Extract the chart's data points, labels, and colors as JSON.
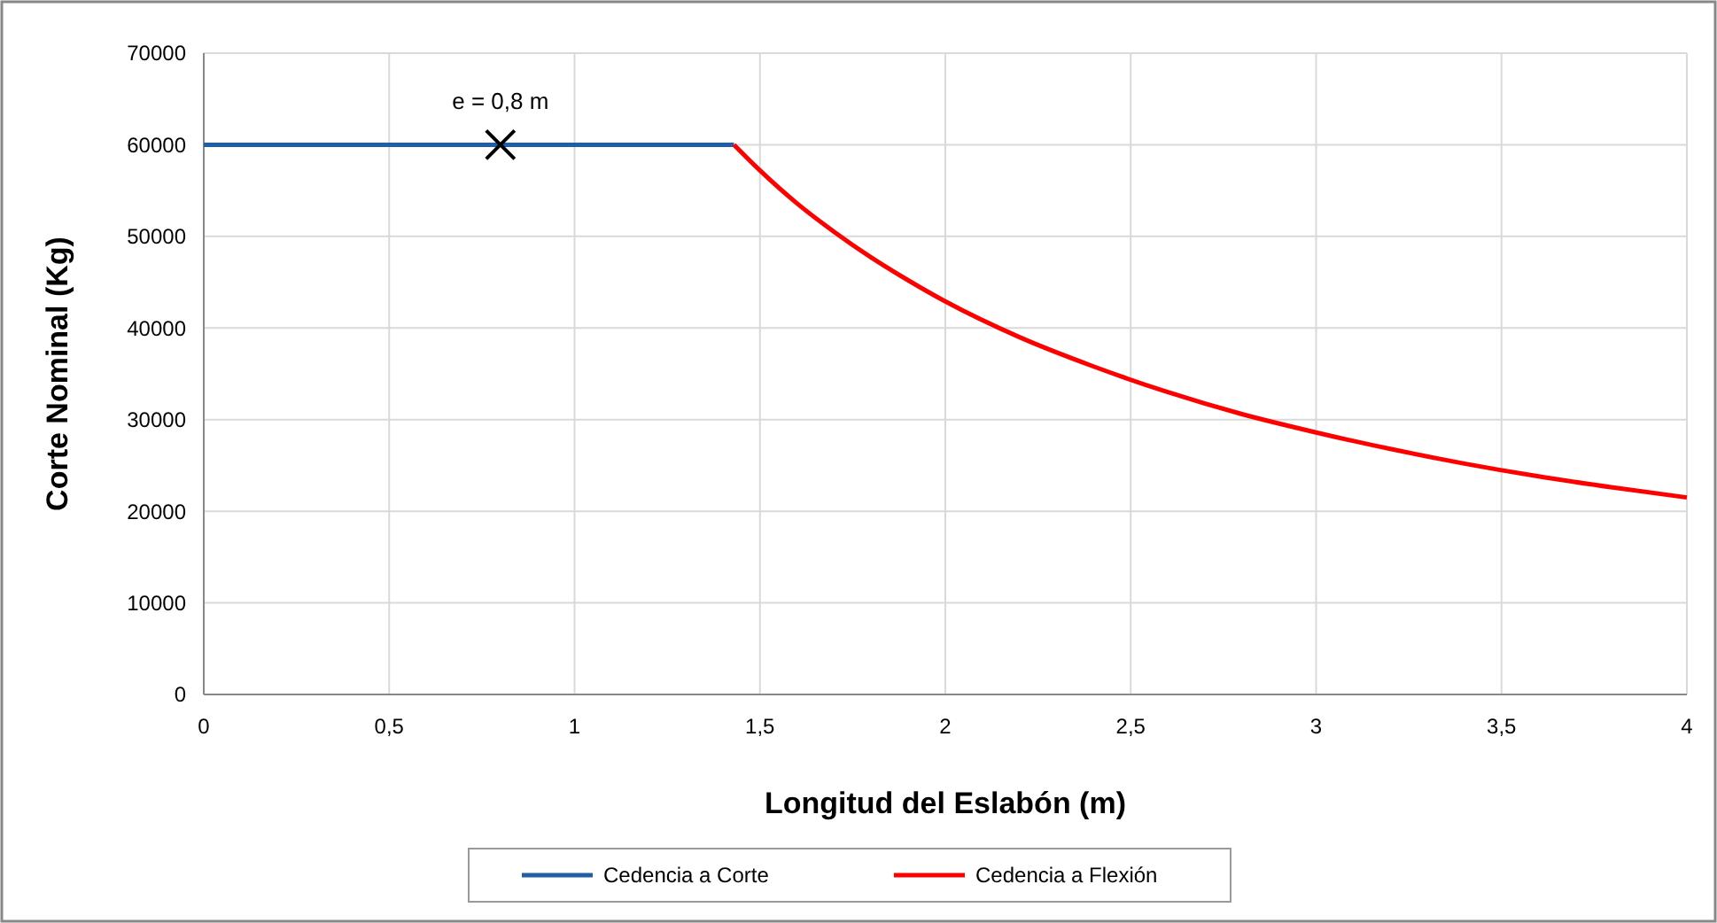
{
  "chart_data": {
    "type": "line",
    "xlabel": "Longitud del Eslabón (m)",
    "ylabel": "Corte Nominal (Kg)",
    "xlim": [
      0,
      4
    ],
    "xticks": [
      0,
      {
        "value": 0.5,
        "label": "0,5"
      },
      1,
      {
        "value": 1.5,
        "label": "1,5"
      },
      2,
      {
        "value": 2.5,
        "label": "2,5"
      },
      3,
      {
        "value": 3.5,
        "label": "3,5"
      },
      4
    ],
    "ylim": [
      0,
      70000
    ],
    "yticks": [
      0,
      10000,
      20000,
      30000,
      40000,
      50000,
      60000,
      70000
    ],
    "grid": true,
    "legend": "bottom",
    "marker": "none",
    "line_style": "solid",
    "series": [
      {
        "name": "Cedencia a Corte",
        "color": "#1f5fa8",
        "x": [
          0,
          1.43
        ],
        "values": [
          60000,
          60000
        ]
      },
      {
        "name": "Cedencia a Flexión",
        "color": "#ff0000",
        "x": [
          1.43,
          1.5,
          1.6,
          1.7,
          1.8,
          1.9,
          2.0,
          2.2,
          2.4,
          2.6,
          2.8,
          3.0,
          3.2,
          3.4,
          3.6,
          3.8,
          4.0
        ],
        "values": [
          60000,
          57200,
          53600,
          50500,
          47700,
          45200,
          42900,
          39000,
          35800,
          33000,
          30600,
          28600,
          26800,
          25200,
          23800,
          22600,
          21500
        ]
      },
      {
        "type": "scatter",
        "marker": "cross",
        "color": "#000000",
        "x": [
          0.8
        ],
        "values": [
          60000
        ]
      }
    ],
    "annotations": [
      {
        "text": "e = 0,8 m",
        "x": 0.8,
        "y": 60000
      }
    ]
  }
}
